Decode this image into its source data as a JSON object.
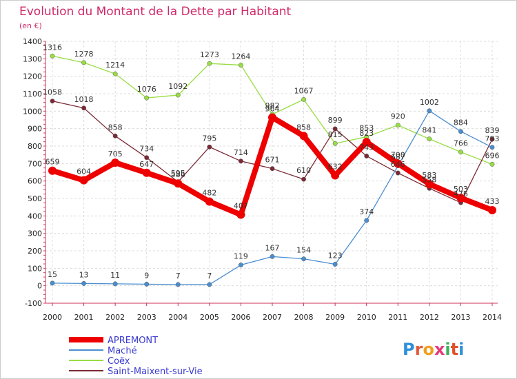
{
  "title": "Evolution du Montant de la Dette par Habitant",
  "subtitle": "(en €)",
  "logo_text": "Proxiti",
  "chart_data": {
    "type": "line",
    "title": "Evolution du Montant de la Dette par Habitant",
    "ylabel": "(en €)",
    "x": [
      2000,
      2001,
      2002,
      2003,
      2004,
      2005,
      2006,
      2007,
      2008,
      2009,
      2010,
      2011,
      2012,
      2013,
      2014
    ],
    "ylim": [
      -100,
      1400
    ],
    "yticks": [
      -100,
      0,
      100,
      200,
      300,
      400,
      500,
      600,
      700,
      800,
      900,
      1000,
      1100,
      1200,
      1300,
      1400
    ],
    "grid": true,
    "legend_position": "bottom-left",
    "series": [
      {
        "name": "Coëx",
        "color": "#99dd44",
        "values": [
          1316,
          1278,
          1214,
          1076,
          1092,
          1273,
          1264,
          982,
          1067,
          815,
          853,
          920,
          841,
          766,
          696
        ]
      },
      {
        "name": "Saint-Maixent-sur-Vie",
        "color": "#7b2a35",
        "values": [
          1058,
          1018,
          858,
          734,
          595,
          795,
          714,
          671,
          610,
          899,
          743,
          646,
          558,
          476,
          839
        ]
      },
      {
        "name": "Maché",
        "color": "#4a8ed0",
        "values": [
          15,
          13,
          11,
          9,
          7,
          7,
          119,
          167,
          154,
          123,
          374,
          687,
          1002,
          884,
          793
        ]
      },
      {
        "name": "APREMONT",
        "color": "#ee0000",
        "values": [
          659,
          604,
          705,
          647,
          586,
          482,
          407,
          964,
          858,
          632,
          823,
          700,
          583,
          503,
          433
        ]
      }
    ],
    "legend_order": [
      "APREMONT",
      "Maché",
      "Coëx",
      "Saint-Maixent-sur-Vie"
    ],
    "data_labels": [
      {
        "series": "Coëx",
        "values": [
          "1316",
          "1278",
          "1214",
          "1076",
          "1092",
          "1273",
          "1264",
          "982",
          "1067",
          "815",
          "853",
          "920",
          "841",
          "766",
          "696"
        ]
      },
      {
        "series": "Saint-Maixent-sur-Vie",
        "values": [
          "1058",
          "1018",
          "858",
          "734",
          "595",
          "795",
          "714",
          "671",
          "610",
          "899",
          "743",
          "646",
          "558",
          "476",
          "839"
        ]
      },
      {
        "series": "Maché",
        "values": [
          "15",
          "13",
          "11",
          "9",
          "7",
          "7",
          "119",
          "167",
          "154",
          "123",
          "374",
          "687",
          "1002",
          "884",
          "793"
        ]
      },
      {
        "series": "APREMONT",
        "values": [
          "659",
          "604",
          "705",
          "647",
          "586",
          "482",
          "407",
          "964",
          "858",
          "632",
          "823",
          "700",
          "583",
          "503",
          "433"
        ]
      }
    ]
  }
}
